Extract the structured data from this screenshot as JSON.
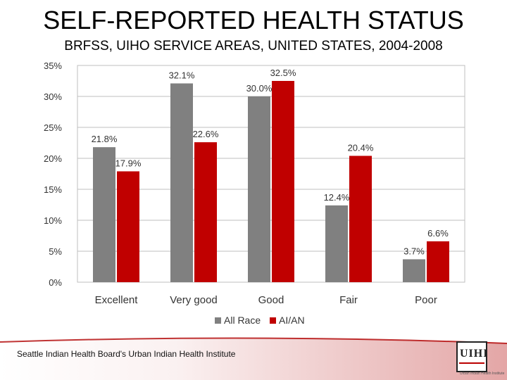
{
  "header": {
    "title": "SELF-REPORTED HEALTH STATUS",
    "subtitle": "BRFSS, UIHO SERVICE AREAS, UNITED STATES, 2004-2008"
  },
  "footer": {
    "source": "Seattle Indian Health Board's Urban Indian Health Institute",
    "logo_text": "UIHI",
    "logo_tagline": "Urban Indian Health Institute"
  },
  "colors": {
    "all_race": "#808080",
    "ai_an": "#c00000",
    "band": "#b00000"
  },
  "chart_data": {
    "type": "bar",
    "categories": [
      "Excellent",
      "Very good",
      "Good",
      "Fair",
      "Poor"
    ],
    "series": [
      {
        "name": "All Race",
        "values": [
          21.8,
          32.1,
          30.0,
          12.4,
          3.7
        ],
        "labels": [
          "21.8%",
          "32.1%",
          "30.0%",
          "12.4%",
          "3.7%"
        ]
      },
      {
        "name": "AI/AN",
        "values": [
          17.9,
          22.6,
          32.5,
          20.4,
          6.6
        ],
        "labels": [
          "17.9%",
          "22.6%",
          "32.5%",
          "20.4%",
          "6.6%"
        ]
      }
    ],
    "y_ticks": [
      0,
      5,
      10,
      15,
      20,
      25,
      30,
      35
    ],
    "y_tick_labels": [
      "0%",
      "5%",
      "10%",
      "15%",
      "20%",
      "25%",
      "30%",
      "35%"
    ],
    "ylim": [
      0,
      35
    ],
    "grid": true,
    "legend_position": "bottom"
  }
}
